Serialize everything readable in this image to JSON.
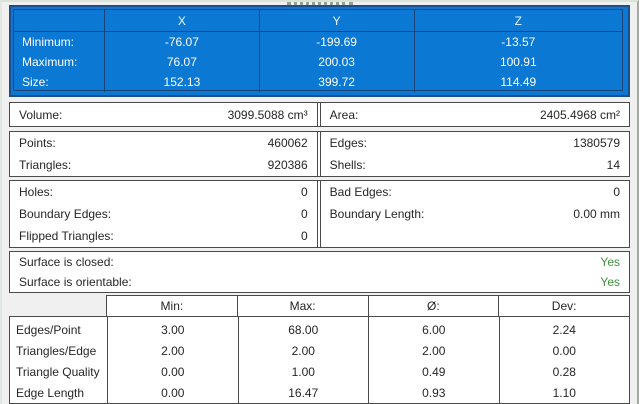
{
  "bounds_table": {
    "columns": [
      "X",
      "Y",
      "Z"
    ],
    "rows": [
      {
        "label": "Minimum:",
        "x": "-76.07",
        "y": "-199.69",
        "z": "-13.57"
      },
      {
        "label": "Maximum:",
        "x": "76.07",
        "y": "200.03",
        "z": "100.91"
      },
      {
        "label": "Size:",
        "x": "152.13",
        "y": "399.72",
        "z": "114.49"
      }
    ]
  },
  "volume_area": {
    "volume_label": "Volume:",
    "volume_value": "3099.5088 cm³",
    "area_label": "Area:",
    "area_value": "2405.4968 cm²"
  },
  "mesh_counts": {
    "points_label": "Points:",
    "points_value": "460062",
    "edges_label": "Edges:",
    "edges_value": "1380579",
    "triangles_label": "Triangles:",
    "triangles_value": "920386",
    "shells_label": "Shells:",
    "shells_value": "14"
  },
  "defects": {
    "holes_label": "Holes:",
    "holes_value": "0",
    "bad_edges_label": "Bad Edges:",
    "bad_edges_value": "0",
    "boundary_edges_label": "Boundary Edges:",
    "boundary_edges_value": "0",
    "boundary_length_label": "Boundary Length:",
    "boundary_length_value": "0.00 mm",
    "flipped_triangles_label": "Flipped Triangles:",
    "flipped_triangles_value": "0"
  },
  "surface": {
    "closed_label": "Surface is closed:",
    "closed_value": "Yes",
    "orientable_label": "Surface is orientable:",
    "orientable_value": "Yes"
  },
  "stats_table": {
    "columns": [
      "Min:",
      "Max:",
      "Ø:",
      "Dev:"
    ],
    "rows": [
      {
        "label": "Edges/Point",
        "min": "3.00",
        "max": "68.00",
        "avg": "6.00",
        "dev": "2.24"
      },
      {
        "label": "Triangles/Edge",
        "min": "2.00",
        "max": "2.00",
        "avg": "2.00",
        "dev": "0.00"
      },
      {
        "label": "Triangle Quality",
        "min": "0.00",
        "max": "1.00",
        "avg": "0.49",
        "dev": "0.28"
      },
      {
        "label": "Edge Length",
        "min": "0.00",
        "max": "16.47",
        "avg": "0.93",
        "dev": "1.10"
      }
    ]
  },
  "colors": {
    "selection_blue": "#0b79d4",
    "selection_border": "#1d4e89",
    "box_border": "#4a4a4a",
    "yes_green": "#3f923f",
    "background": "#f0f0f0",
    "text": "#262626"
  }
}
